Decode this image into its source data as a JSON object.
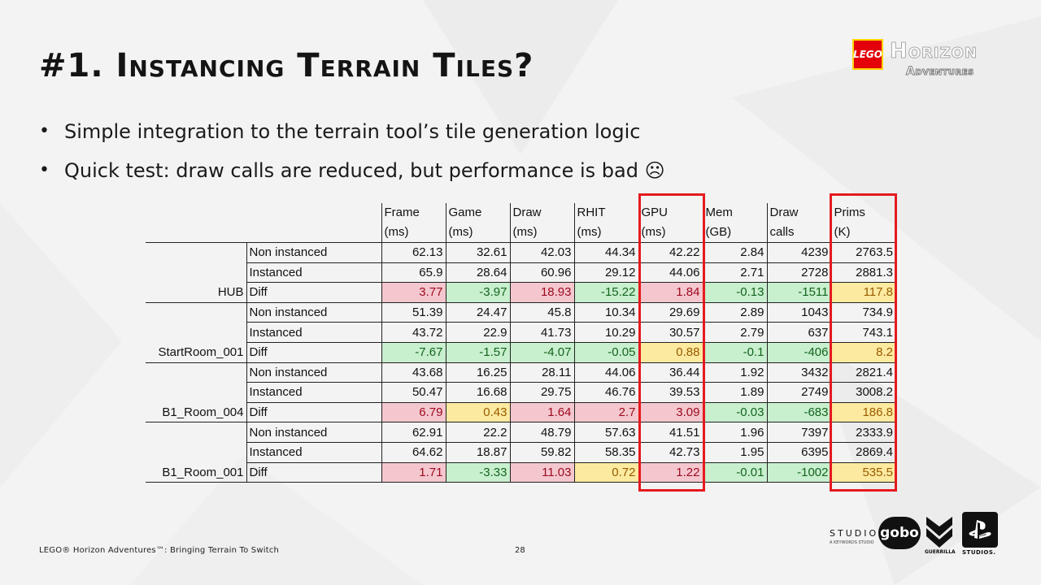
{
  "title": "#1. Instancing Terrain Tiles?",
  "bullets": [
    "Simple integration to the terrain tool’s tile generation logic",
    "Quick test: draw calls are reduced, but performance is bad ☹"
  ],
  "logo": {
    "badge": "LEGO",
    "line1": "Horizon",
    "line2": "Adventures"
  },
  "table": {
    "columns": [
      {
        "l1": "Frame",
        "l2": "(ms)"
      },
      {
        "l1": "Game",
        "l2": "(ms)"
      },
      {
        "l1": "Draw",
        "l2": "(ms)"
      },
      {
        "l1": "RHIT",
        "l2": "(ms)"
      },
      {
        "l1": "GPU",
        "l2": "(ms)"
      },
      {
        "l1": "Mem",
        "l2": "(GB)"
      },
      {
        "l1": "Draw",
        "l2": "calls"
      },
      {
        "l1": "Prims",
        "l2": "(K)"
      }
    ],
    "groups": [
      {
        "name": "HUB",
        "rows": [
          {
            "label": "Non instanced",
            "values": [
              "62.13",
              "32.61",
              "42.03",
              "44.34",
              "42.22",
              "2.84",
              "4239",
              "2763.5"
            ]
          },
          {
            "label": "Instanced",
            "values": [
              "65.9",
              "28.64",
              "60.96",
              "29.12",
              "44.06",
              "2.71",
              "2728",
              "2881.3"
            ]
          },
          {
            "label": "Diff",
            "values": [
              "3.77",
              "-3.97",
              "18.93",
              "-15.22",
              "1.84",
              "-0.13",
              "-1511",
              "117.8"
            ],
            "colors": [
              "red",
              "green",
              "red",
              "green",
              "red",
              "green",
              "green",
              "yellow"
            ]
          }
        ]
      },
      {
        "name": "StartRoom_001",
        "rows": [
          {
            "label": "Non instanced",
            "values": [
              "51.39",
              "24.47",
              "45.8",
              "10.34",
              "29.69",
              "2.89",
              "1043",
              "734.9"
            ]
          },
          {
            "label": "Instanced",
            "values": [
              "43.72",
              "22.9",
              "41.73",
              "10.29",
              "30.57",
              "2.79",
              "637",
              "743.1"
            ]
          },
          {
            "label": "Diff",
            "values": [
              "-7.67",
              "-1.57",
              "-4.07",
              "-0.05",
              "0.88",
              "-0.1",
              "-406",
              "8.2"
            ],
            "colors": [
              "green",
              "green",
              "green",
              "green",
              "yellow",
              "green",
              "green",
              "yellow"
            ]
          }
        ]
      },
      {
        "name": "B1_Room_004",
        "rows": [
          {
            "label": "Non instanced",
            "values": [
              "43.68",
              "16.25",
              "28.11",
              "44.06",
              "36.44",
              "1.92",
              "3432",
              "2821.4"
            ]
          },
          {
            "label": "Instanced",
            "values": [
              "50.47",
              "16.68",
              "29.75",
              "46.76",
              "39.53",
              "1.89",
              "2749",
              "3008.2"
            ]
          },
          {
            "label": "Diff",
            "values": [
              "6.79",
              "0.43",
              "1.64",
              "2.7",
              "3.09",
              "-0.03",
              "-683",
              "186.8"
            ],
            "colors": [
              "red",
              "yellow",
              "red",
              "red",
              "red",
              "green",
              "green",
              "yellow"
            ]
          }
        ]
      },
      {
        "name": "B1_Room_001",
        "rows": [
          {
            "label": "Non instanced",
            "values": [
              "62.91",
              "22.2",
              "48.79",
              "57.63",
              "41.51",
              "1.96",
              "7397",
              "2333.9"
            ]
          },
          {
            "label": "Instanced",
            "values": [
              "64.62",
              "18.87",
              "59.82",
              "58.35",
              "42.73",
              "1.95",
              "6395",
              "2869.4"
            ]
          },
          {
            "label": "Diff",
            "values": [
              "1.71",
              "-3.33",
              "11.03",
              "0.72",
              "1.22",
              "-0.01",
              "-1002",
              "535.5"
            ],
            "colors": [
              "red",
              "green",
              "red",
              "yellow",
              "red",
              "green",
              "green",
              "yellow"
            ]
          }
        ]
      }
    ]
  },
  "footer": {
    "caption": "LEGO® Horizon Adventures™: Bringing Terrain To Switch",
    "page": "28",
    "studio_word": "STUDIO",
    "studio_sub": "A KEYWORDS STUDIO",
    "gobo": "gobo",
    "guerrilla": "GUERRILLA",
    "studios": "STUDIOS."
  },
  "colors": {
    "highlight": "#e51a1f",
    "diff_red": "#f4c7ce",
    "diff_green": "#c8efce",
    "diff_yellow": "#fbeaa0"
  }
}
